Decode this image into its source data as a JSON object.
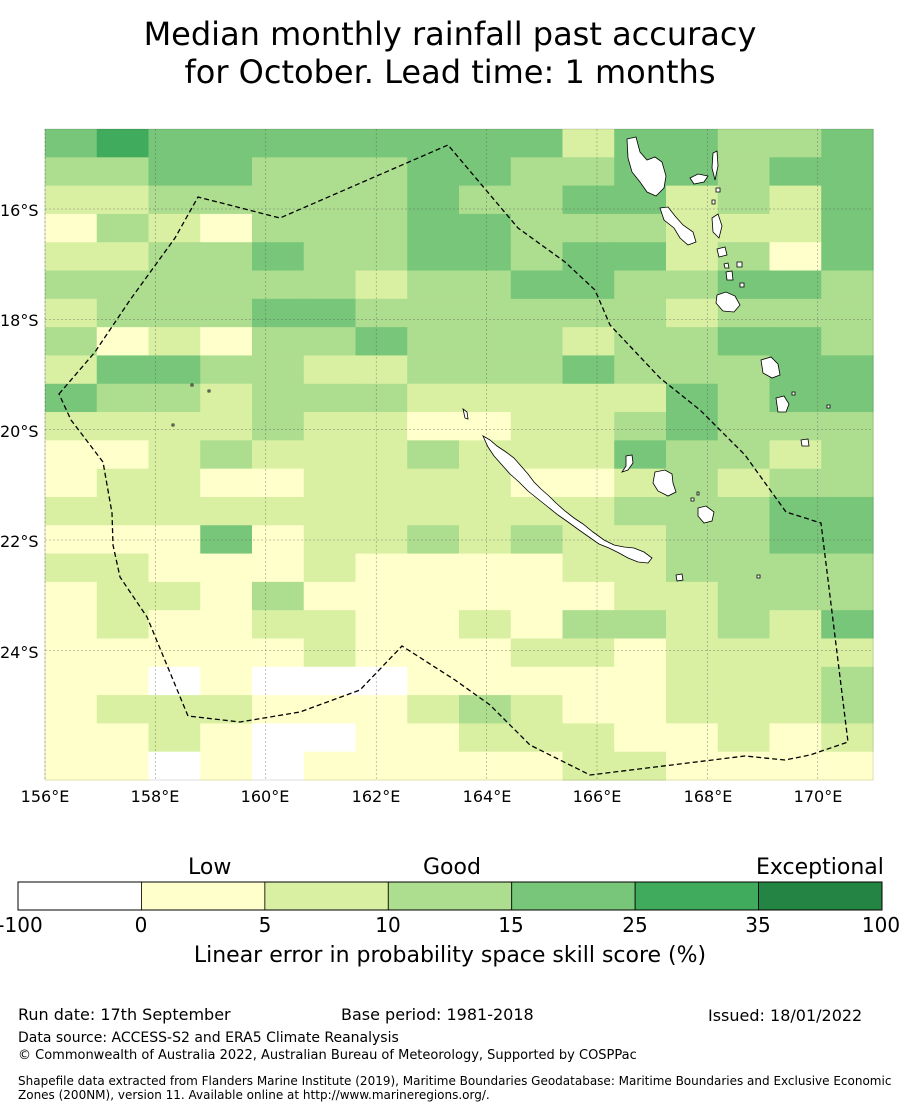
{
  "title_line1": "Median monthly rainfall past accuracy",
  "title_line2": "for October. Lead time: 1 months",
  "map": {
    "lat_labels": [
      "16°S",
      "18°S",
      "20°S",
      "22°S",
      "24°S"
    ],
    "lon_labels": [
      "156°E",
      "158°E",
      "160°E",
      "162°E",
      "164°E",
      "166°E",
      "168°E",
      "170°E"
    ],
    "lon_range": [
      156.0,
      171.0
    ],
    "lat_range": [
      -14.55,
      -26.35
    ],
    "grid_rows": [
      "4544444444244334",
      "3344333443344344",
      "2233333433442324",
      "1321333443332224",
      "2233433443442314",
      "3333332334433443",
      "2333443333332333",
      "3121334333233443",
      "2443322333433344",
      "4332333222224344",
      "2222322112234333",
      "1123222322243323",
      "1221122221123233",
      "2222222222233344",
      "1114122323223344",
      "2211121111223333",
      "1221311111122333",
      "1211221121332324",
      "1111121112212222",
      "1101000111112223",
      "1222111232112223",
      "1121001122211212",
      "1101011111221111"
    ],
    "land_color": "#ffffff",
    "boundary_style": "dashed"
  },
  "colorbar": {
    "categories": [
      "Low",
      "Good",
      "Exceptional"
    ],
    "ticks": [
      "-100",
      "0",
      "5",
      "10",
      "15",
      "25",
      "35",
      "100"
    ],
    "colors": [
      "#ffffff",
      "#ffffcc",
      "#d9f0a3",
      "#addd8e",
      "#78c679",
      "#41ab5d",
      "#238443"
    ],
    "label": "Linear error in probability space skill score (%)"
  },
  "footer": {
    "run_date": "Run date: 17th September",
    "base_period": "Base period: 1981-2018",
    "issued": "Issued: 18/01/2022",
    "data_source": "Data source: ACCESS-S2 and ERA5 Climate Reanalysis",
    "copyright": "© Commonwealth of Australia 2022, Australian Bureau of Meteorology, Supported by COSPPac",
    "shapefile_line1": "Shapefile data extracted from Flanders Marine Institute (2019), Maritime Boundaries Geodatabase: Maritime Boundaries and Exclusive Economic",
    "shapefile_line2": "Zones (200NM), version 11. Available online at http://www.marineregions.org/."
  }
}
